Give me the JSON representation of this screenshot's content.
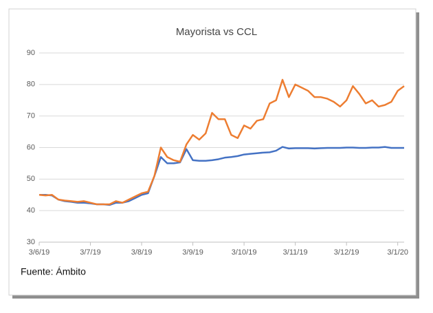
{
  "chart_data": {
    "type": "line",
    "title": "Mayorista vs CCL",
    "source": "Fuente: Ámbito",
    "categories": [
      "3/6/19",
      null,
      null,
      null,
      null,
      null,
      null,
      null,
      "3/7/19",
      null,
      null,
      null,
      null,
      null,
      null,
      null,
      "3/8/19",
      null,
      null,
      null,
      null,
      null,
      null,
      null,
      "3/9/19",
      null,
      null,
      null,
      null,
      null,
      null,
      null,
      "3/10/19",
      null,
      null,
      null,
      null,
      null,
      null,
      null,
      "3/11/19",
      null,
      null,
      null,
      null,
      null,
      null,
      null,
      "3/12/19",
      null,
      null,
      null,
      null,
      null,
      null,
      null,
      "3/1/20",
      null
    ],
    "series": [
      {
        "color": "#4472c4",
        "values": [
          45,
          45,
          44.8,
          43.5,
          43,
          42.8,
          42.5,
          42.5,
          42.3,
          42,
          42,
          41.8,
          42.5,
          42.5,
          43,
          44,
          45,
          45.5,
          51,
          57,
          55,
          55,
          55.3,
          59.5,
          56,
          55.8,
          55.8,
          56,
          56.3,
          56.8,
          57,
          57.3,
          57.8,
          58,
          58.2,
          58.4,
          58.5,
          59,
          60.2,
          59.7,
          59.8,
          59.8,
          59.8,
          59.7,
          59.8,
          59.9,
          59.9,
          59.9,
          60,
          60,
          59.9,
          59.9,
          60,
          60,
          60.2,
          59.9,
          59.9,
          59.9
        ]
      },
      {
        "color": "#ed7d31",
        "values": [
          45,
          44.8,
          45,
          43.5,
          43.2,
          43,
          42.8,
          43,
          42.5,
          42,
          42,
          42,
          43,
          42.5,
          43.5,
          44.5,
          45.5,
          46,
          51,
          60,
          57,
          56,
          55.5,
          61,
          64,
          62.5,
          64.5,
          71,
          69,
          69,
          64,
          63,
          67,
          66,
          68.5,
          69,
          74,
          75,
          81.5,
          76,
          80,
          79,
          78,
          76,
          76,
          75.5,
          74.5,
          73,
          75,
          79.5,
          77,
          74,
          75,
          73,
          73.5,
          74.5,
          78,
          79.5
        ]
      }
    ],
    "ylim": [
      30,
      90
    ],
    "yticks": [
      30,
      40,
      50,
      60,
      70,
      80,
      90
    ],
    "grid": true
  }
}
